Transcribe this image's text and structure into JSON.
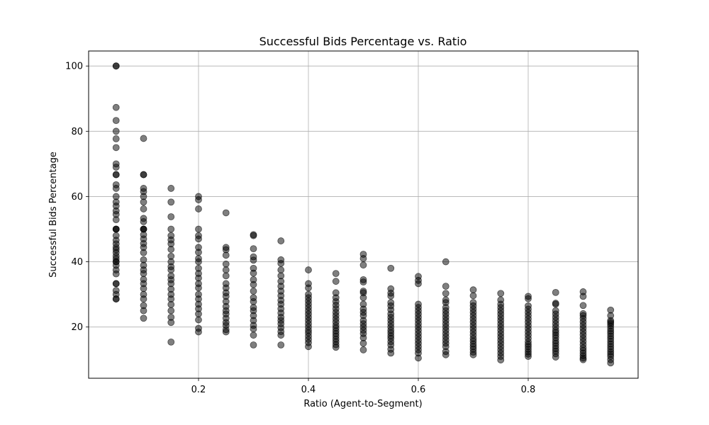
{
  "chart_data": {
    "type": "scatter",
    "title": "Successful Bids Percentage vs. Ratio",
    "xlabel": "Ratio (Agent-to-Segment)",
    "ylabel": "Successful Bids Percentage",
    "xlim": [
      0.0,
      1.0
    ],
    "ylim": [
      4.3,
      104.6
    ],
    "x_ticks": [
      0.2,
      0.4,
      0.6,
      0.8
    ],
    "x_tick_labels": [
      "0.2",
      "0.4",
      "0.6",
      "0.8"
    ],
    "y_ticks": [
      20,
      40,
      60,
      80,
      100
    ],
    "y_tick_labels": [
      "20",
      "40",
      "60",
      "80",
      "100"
    ],
    "grid": true,
    "marker_color": "#000000",
    "marker_alpha": 0.5,
    "series": [
      {
        "x": [
          0.05,
          0.05,
          0.05,
          0.05,
          0.05,
          0.05,
          0.05,
          0.05,
          0.05,
          0.05,
          0.05,
          0.05,
          0.05,
          0.05,
          0.05,
          0.05,
          0.05,
          0.05,
          0.05,
          0.05,
          0.05,
          0.05,
          0.05,
          0.05,
          0.05,
          0.05,
          0.05,
          0.05,
          0.05,
          0.05,
          0.05,
          0.05,
          0.05,
          0.05,
          0.05,
          0.05,
          0.05,
          0.05,
          0.05,
          0.05,
          0.05,
          0.1,
          0.1,
          0.1,
          0.1,
          0.1,
          0.1,
          0.1,
          0.1,
          0.1,
          0.1,
          0.1,
          0.1,
          0.1,
          0.1,
          0.1,
          0.1,
          0.1,
          0.1,
          0.1,
          0.1,
          0.1,
          0.1,
          0.1,
          0.1,
          0.1,
          0.1,
          0.1,
          0.1,
          0.1,
          0.1,
          0.15,
          0.15,
          0.15,
          0.15,
          0.15,
          0.15,
          0.15,
          0.15,
          0.15,
          0.15,
          0.15,
          0.15,
          0.15,
          0.15,
          0.15,
          0.15,
          0.15,
          0.15,
          0.15,
          0.15,
          0.15,
          0.15,
          0.15,
          0.2,
          0.2,
          0.2,
          0.2,
          0.2,
          0.2,
          0.2,
          0.2,
          0.2,
          0.2,
          0.2,
          0.2,
          0.2,
          0.2,
          0.2,
          0.2,
          0.2,
          0.2,
          0.2,
          0.2,
          0.2,
          0.2,
          0.2,
          0.25,
          0.25,
          0.25,
          0.25,
          0.25,
          0.25,
          0.25,
          0.25,
          0.25,
          0.25,
          0.25,
          0.25,
          0.25,
          0.25,
          0.25,
          0.25,
          0.25,
          0.25,
          0.25,
          0.25,
          0.3,
          0.3,
          0.3,
          0.3,
          0.3,
          0.3,
          0.3,
          0.3,
          0.3,
          0.3,
          0.3,
          0.3,
          0.3,
          0.3,
          0.3,
          0.3,
          0.3,
          0.3,
          0.3,
          0.3,
          0.35,
          0.35,
          0.35,
          0.35,
          0.35,
          0.35,
          0.35,
          0.35,
          0.35,
          0.35,
          0.35,
          0.35,
          0.35,
          0.35,
          0.35,
          0.35,
          0.35,
          0.35,
          0.35,
          0.35,
          0.4,
          0.4,
          0.4,
          0.4,
          0.4,
          0.4,
          0.4,
          0.4,
          0.4,
          0.4,
          0.4,
          0.4,
          0.4,
          0.4,
          0.4,
          0.4,
          0.4,
          0.4,
          0.4,
          0.4,
          0.45,
          0.45,
          0.45,
          0.45,
          0.45,
          0.45,
          0.45,
          0.45,
          0.45,
          0.45,
          0.45,
          0.45,
          0.45,
          0.45,
          0.45,
          0.45,
          0.45,
          0.45,
          0.45,
          0.45,
          0.5,
          0.5,
          0.5,
          0.5,
          0.5,
          0.5,
          0.5,
          0.5,
          0.5,
          0.5,
          0.5,
          0.5,
          0.5,
          0.5,
          0.5,
          0.5,
          0.5,
          0.5,
          0.5,
          0.5,
          0.55,
          0.55,
          0.55,
          0.55,
          0.55,
          0.55,
          0.55,
          0.55,
          0.55,
          0.55,
          0.55,
          0.55,
          0.55,
          0.55,
          0.55,
          0.55,
          0.55,
          0.55,
          0.55,
          0.55,
          0.6,
          0.6,
          0.6,
          0.6,
          0.6,
          0.6,
          0.6,
          0.6,
          0.6,
          0.6,
          0.6,
          0.6,
          0.6,
          0.6,
          0.6,
          0.6,
          0.6,
          0.6,
          0.6,
          0.6,
          0.65,
          0.65,
          0.65,
          0.65,
          0.65,
          0.65,
          0.65,
          0.65,
          0.65,
          0.65,
          0.65,
          0.65,
          0.65,
          0.65,
          0.65,
          0.65,
          0.65,
          0.65,
          0.65,
          0.65,
          0.7,
          0.7,
          0.7,
          0.7,
          0.7,
          0.7,
          0.7,
          0.7,
          0.7,
          0.7,
          0.7,
          0.7,
          0.7,
          0.7,
          0.7,
          0.7,
          0.7,
          0.7,
          0.7,
          0.7,
          0.75,
          0.75,
          0.75,
          0.75,
          0.75,
          0.75,
          0.75,
          0.75,
          0.75,
          0.75,
          0.75,
          0.75,
          0.75,
          0.75,
          0.75,
          0.75,
          0.75,
          0.75,
          0.75,
          0.75,
          0.8,
          0.8,
          0.8,
          0.8,
          0.8,
          0.8,
          0.8,
          0.8,
          0.8,
          0.8,
          0.8,
          0.8,
          0.8,
          0.8,
          0.8,
          0.8,
          0.8,
          0.8,
          0.8,
          0.8,
          0.85,
          0.85,
          0.85,
          0.85,
          0.85,
          0.85,
          0.85,
          0.85,
          0.85,
          0.85,
          0.85,
          0.85,
          0.85,
          0.85,
          0.85,
          0.85,
          0.85,
          0.85,
          0.85,
          0.85,
          0.9,
          0.9,
          0.9,
          0.9,
          0.9,
          0.9,
          0.9,
          0.9,
          0.9,
          0.9,
          0.9,
          0.9,
          0.9,
          0.9,
          0.9,
          0.9,
          0.9,
          0.9,
          0.9,
          0.9,
          0.95,
          0.95,
          0.95,
          0.95,
          0.95,
          0.95,
          0.95,
          0.95,
          0.95,
          0.95,
          0.95,
          0.95,
          0.95,
          0.95,
          0.95,
          0.95,
          0.95,
          0.95,
          0.95,
          0.95
        ],
        "y": [
          100,
          100,
          87.3,
          83.3,
          80,
          77.7,
          75,
          70,
          69,
          66.7,
          66.7,
          63.6,
          62.5,
          60,
          58.3,
          57.1,
          55.6,
          54.5,
          52.9,
          50,
          50,
          50,
          48,
          46.6,
          45.5,
          44.4,
          43.7,
          42.8,
          41.7,
          40.9,
          40,
          38.9,
          37.5,
          36.3,
          33.3,
          33.3,
          31.2,
          30,
          28.6,
          28.6,
          40,
          77.8,
          66.7,
          66.7,
          62.5,
          61.5,
          60,
          58.3,
          56.2,
          53.3,
          52.3,
          50,
          50,
          50,
          48.3,
          47,
          45.6,
          44.4,
          42.8,
          40.6,
          38.9,
          37.5,
          36.4,
          34.6,
          33.3,
          31.8,
          30,
          28.6,
          26.6,
          25,
          22.7,
          62.5,
          58.3,
          53.8,
          50,
          48,
          46.7,
          45.5,
          43.8,
          41.7,
          40,
          38.5,
          37.5,
          35.7,
          34.5,
          33.3,
          31.6,
          30,
          28.6,
          26.9,
          25,
          23,
          21.4,
          15.4,
          60,
          59,
          56.2,
          50,
          48,
          47,
          44.4,
          42.9,
          41,
          40,
          38,
          36.4,
          35,
          33.3,
          32,
          30,
          28.6,
          27,
          25.6,
          24,
          22.2,
          19.6,
          18.5,
          55,
          44.4,
          43.7,
          42,
          39.3,
          37.5,
          35.7,
          33.3,
          32,
          30.5,
          29.4,
          27.8,
          26.3,
          25,
          24,
          22.7,
          21.4,
          20.5,
          19.2,
          18.5,
          48.3,
          48,
          44,
          41.5,
          40.5,
          38,
          36.5,
          34.5,
          33,
          31,
          29,
          27.8,
          26,
          25,
          23.5,
          22,
          20.5,
          19.4,
          17.5,
          14.5,
          46.4,
          40.6,
          39.5,
          37.5,
          35.7,
          34,
          32.5,
          31,
          29.6,
          28.2,
          27,
          25.6,
          24.3,
          23,
          22,
          21,
          19.8,
          18.6,
          17.5,
          14.5,
          37.5,
          33.3,
          32,
          30,
          29,
          28,
          27,
          26,
          25,
          24,
          23,
          22,
          21,
          20,
          19,
          18.2,
          17.2,
          16.2,
          15.2,
          14,
          36.4,
          34,
          30.5,
          29,
          27.8,
          26.7,
          25.6,
          24.5,
          23.5,
          22.5,
          21.5,
          20.5,
          19.7,
          18.8,
          18,
          17.2,
          16.3,
          15.5,
          14.6,
          13.8,
          42.3,
          41,
          39,
          34.5,
          33.8,
          31,
          30.5,
          29,
          27,
          25.5,
          24.5,
          23.5,
          22,
          21,
          20,
          19,
          18,
          16.7,
          15,
          13,
          38,
          31.7,
          30.4,
          29.5,
          27.5,
          26.5,
          25.3,
          24,
          23,
          22,
          21,
          20,
          19,
          18.2,
          17.3,
          16.5,
          15.5,
          14.5,
          13.2,
          12,
          35.5,
          34.3,
          33.3,
          27,
          26,
          25,
          24,
          23,
          22,
          21,
          20,
          19,
          18,
          17,
          16,
          15,
          14,
          13,
          12,
          10.5,
          40,
          32.5,
          30.3,
          28.3,
          27.5,
          26,
          25,
          24,
          23,
          22,
          21,
          20,
          19,
          18,
          17,
          16,
          15,
          14,
          12.5,
          11.5,
          31.4,
          29.6,
          27.5,
          26.5,
          25.5,
          24.5,
          23.5,
          22.5,
          21.5,
          20.5,
          19.5,
          18.5,
          17.5,
          16.5,
          15.7,
          14.8,
          14,
          13.2,
          12.3,
          11.5,
          30.3,
          28.3,
          27,
          26,
          25,
          24,
          23,
          22,
          21,
          20,
          19,
          18,
          17,
          16,
          15,
          14,
          13,
          12,
          11,
          9.9,
          29.4,
          28.7,
          26.5,
          25.5,
          24.5,
          23.5,
          22.5,
          21.5,
          20.5,
          19.5,
          18.5,
          17.5,
          16.5,
          15.5,
          14.7,
          14,
          13.2,
          12.4,
          11.7,
          11,
          30.6,
          27.3,
          27,
          25,
          24,
          23,
          22,
          21,
          20,
          19,
          18.3,
          17.5,
          16.7,
          15.8,
          15,
          14.2,
          13.4,
          12.6,
          11.8,
          10.8,
          30.8,
          29.4,
          26.6,
          24.1,
          23.5,
          22.6,
          21.6,
          20.6,
          19.6,
          18.6,
          17.6,
          16.6,
          15.6,
          14.6,
          13.6,
          12.8,
          12,
          11.2,
          10.5,
          10,
          25.2,
          23.5,
          22,
          21.5,
          21,
          20.3,
          19.5,
          18.7,
          18,
          17.2,
          16.4,
          15.6,
          14.8,
          14,
          13.2,
          12.4,
          11.7,
          11,
          10,
          9
        ]
      }
    ]
  }
}
